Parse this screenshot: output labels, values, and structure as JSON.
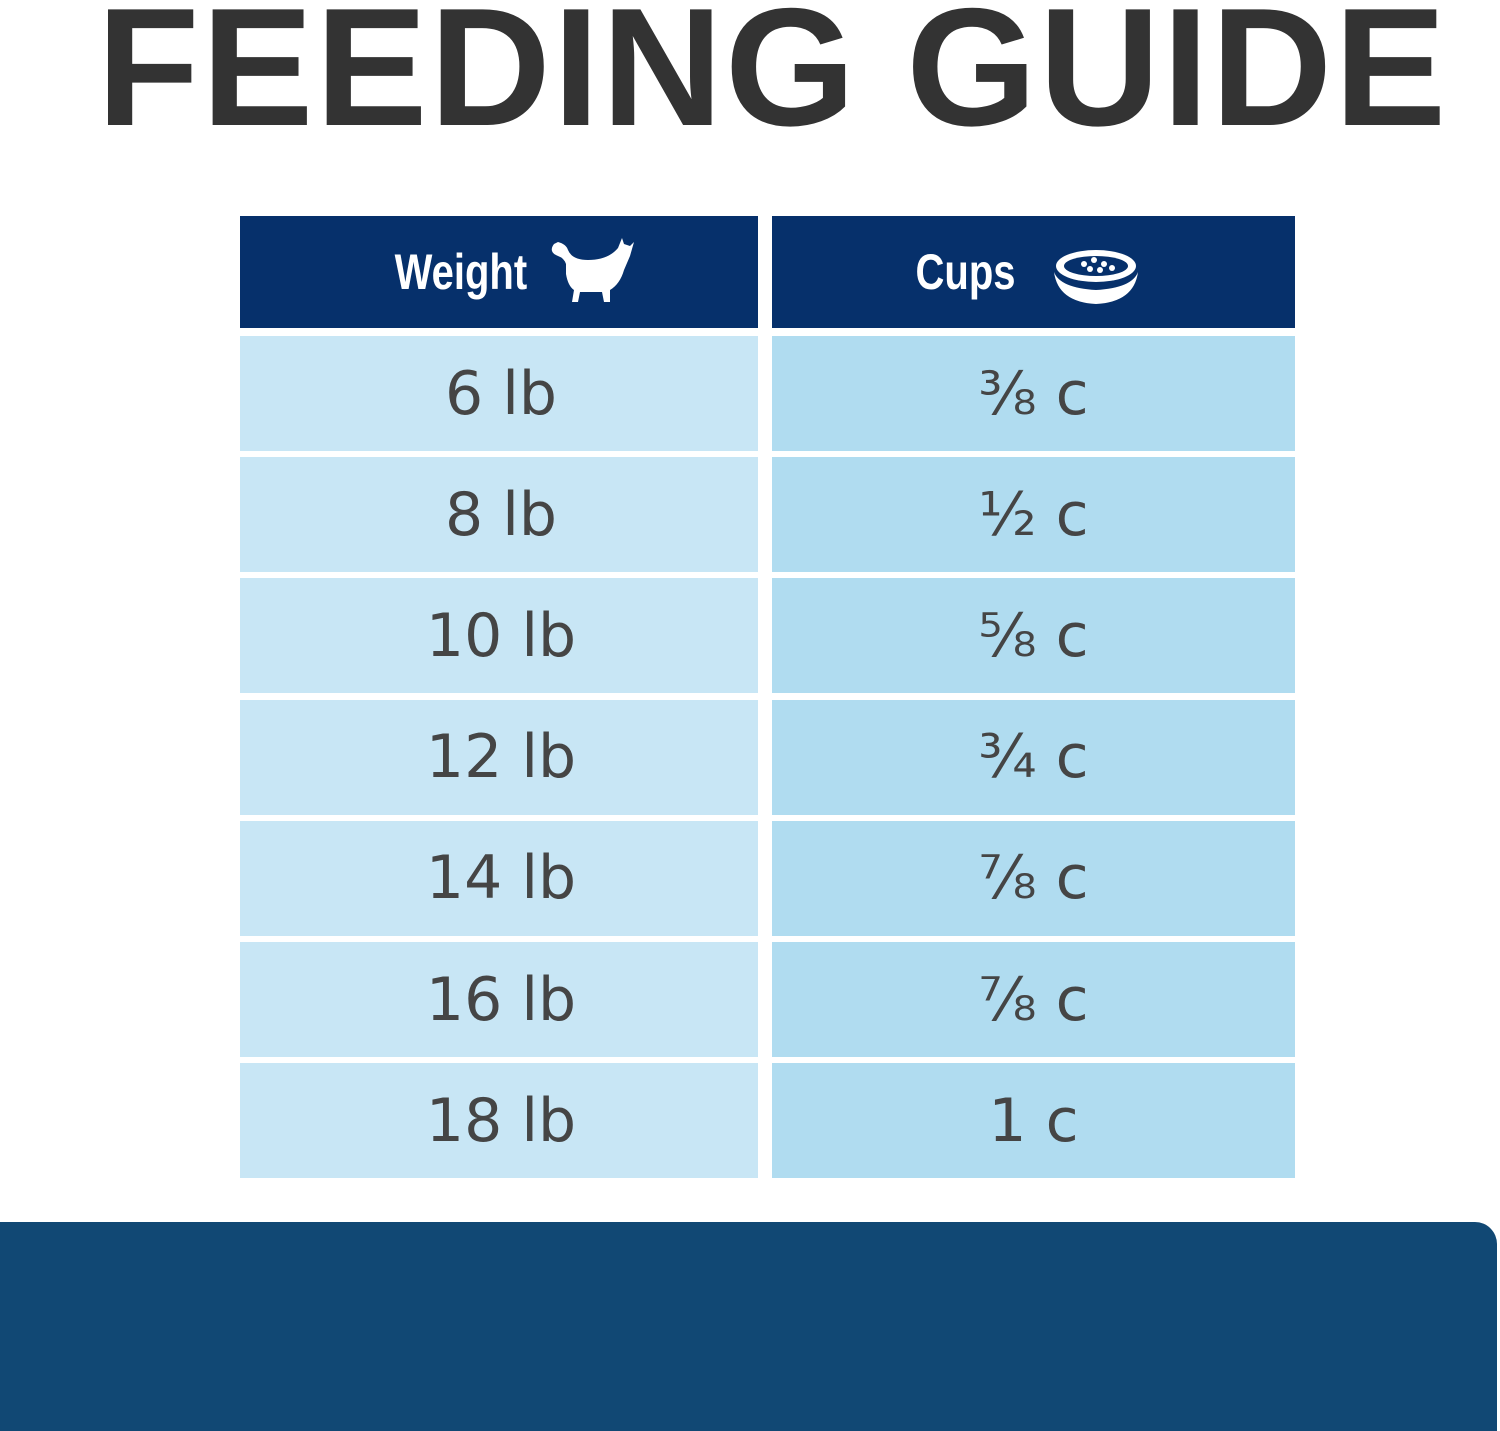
{
  "header": {
    "title": "FEEDING GUIDE"
  },
  "table": {
    "columns": [
      "Weight",
      "Cups"
    ],
    "rows": [
      [
        "6 lb",
        "⅜ c"
      ],
      [
        "8 lb",
        "½ c"
      ],
      [
        "10 lb",
        "⅝ c"
      ],
      [
        "12 lb",
        "¾ c"
      ],
      [
        "14 lb",
        "⅞ c"
      ],
      [
        "16 lb",
        "⅞ c"
      ],
      [
        "18 lb",
        "1 c"
      ]
    ]
  }
}
